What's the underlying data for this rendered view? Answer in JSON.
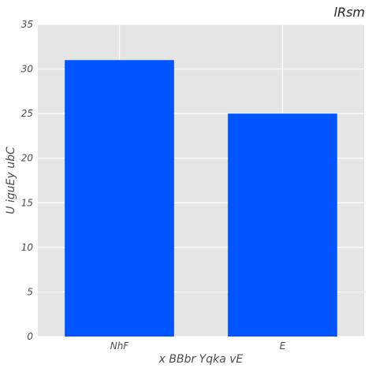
{
  "chart_data": {
    "type": "bar",
    "title": "lRsm",
    "xlabel": "x BBbr Yqka vE",
    "ylabel": "U iguEy ubC",
    "categories": [
      "NhF",
      "E"
    ],
    "values": [
      31,
      25
    ],
    "ylim": [
      0,
      35
    ],
    "yticks": [
      0,
      5,
      10,
      15,
      20,
      25,
      30,
      35
    ],
    "grid": true,
    "colors": {
      "bar": "#0055ff",
      "panel": "#e5e5e5",
      "grid": "#ffffff"
    }
  }
}
